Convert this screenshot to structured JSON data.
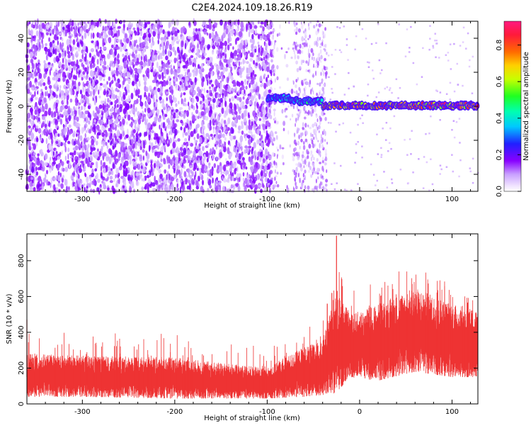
{
  "title": "C2E4.2024.109.18.26.R19",
  "chart_data": [
    {
      "type": "heatmap",
      "xlabel": "Height of straight line (km)",
      "ylabel": "Frequency (Hz)",
      "xlim": [
        -360,
        128
      ],
      "ylim": [
        -50,
        50
      ],
      "xticks": [
        -300,
        -200,
        -100,
        0,
        100
      ],
      "yticks": [
        -40,
        -20,
        0,
        20,
        40
      ],
      "colorbar": {
        "label": "Normalized spectral amplitude",
        "range": [
          0,
          0.93
        ],
        "ticks": [
          0.0,
          0.2,
          0.4,
          0.6,
          0.8
        ],
        "colormap": "rainbow (white→purple→blue→cyan→green→yellow→orange→red)"
      },
      "features": {
        "noise_region_x": [
          -360,
          -95
        ],
        "sparse_noise_x": [
          -95,
          -35
        ],
        "tone_segments": [
          {
            "x": [
              -100,
              -75
            ],
            "freq": 5,
            "peak": 0.45
          },
          {
            "x": [
              -75,
              -40
            ],
            "freq": 3,
            "peak": 0.5
          },
          {
            "x": [
              -40,
              128
            ],
            "freq": 0.5,
            "peak": 0.92
          }
        ]
      },
      "grid": false
    },
    {
      "type": "line",
      "xlabel": "Height of straight line (km)",
      "ylabel": "SNR (10 * v/v)",
      "xlim": [
        -360,
        128
      ],
      "ylim": [
        0,
        950
      ],
      "xticks": [
        -300,
        -200,
        -100,
        0,
        100
      ],
      "yticks": [
        0,
        200,
        400,
        600,
        800
      ],
      "color": "#ee3333",
      "envelope": [
        {
          "x": -360,
          "low": 40,
          "high": 280
        },
        {
          "x": -300,
          "low": 40,
          "high": 270
        },
        {
          "x": -200,
          "low": 30,
          "high": 260
        },
        {
          "x": -100,
          "low": 30,
          "high": 200
        },
        {
          "x": -60,
          "low": 40,
          "high": 320
        },
        {
          "x": -40,
          "low": 50,
          "high": 350
        },
        {
          "x": -26,
          "low": 60,
          "high": 650
        },
        {
          "x": -10,
          "low": 150,
          "high": 500
        },
        {
          "x": 20,
          "low": 130,
          "high": 560
        },
        {
          "x": 60,
          "low": 180,
          "high": 650
        },
        {
          "x": 100,
          "low": 150,
          "high": 560
        },
        {
          "x": 128,
          "low": 150,
          "high": 520
        }
      ],
      "annotations": [
        {
          "x": -25,
          "value": 940,
          "note": "spike"
        },
        {
          "x": -35,
          "value": 560
        },
        {
          "x": -360,
          "value": 470
        },
        {
          "x": -30,
          "value": 620
        }
      ],
      "grid": false
    }
  ]
}
